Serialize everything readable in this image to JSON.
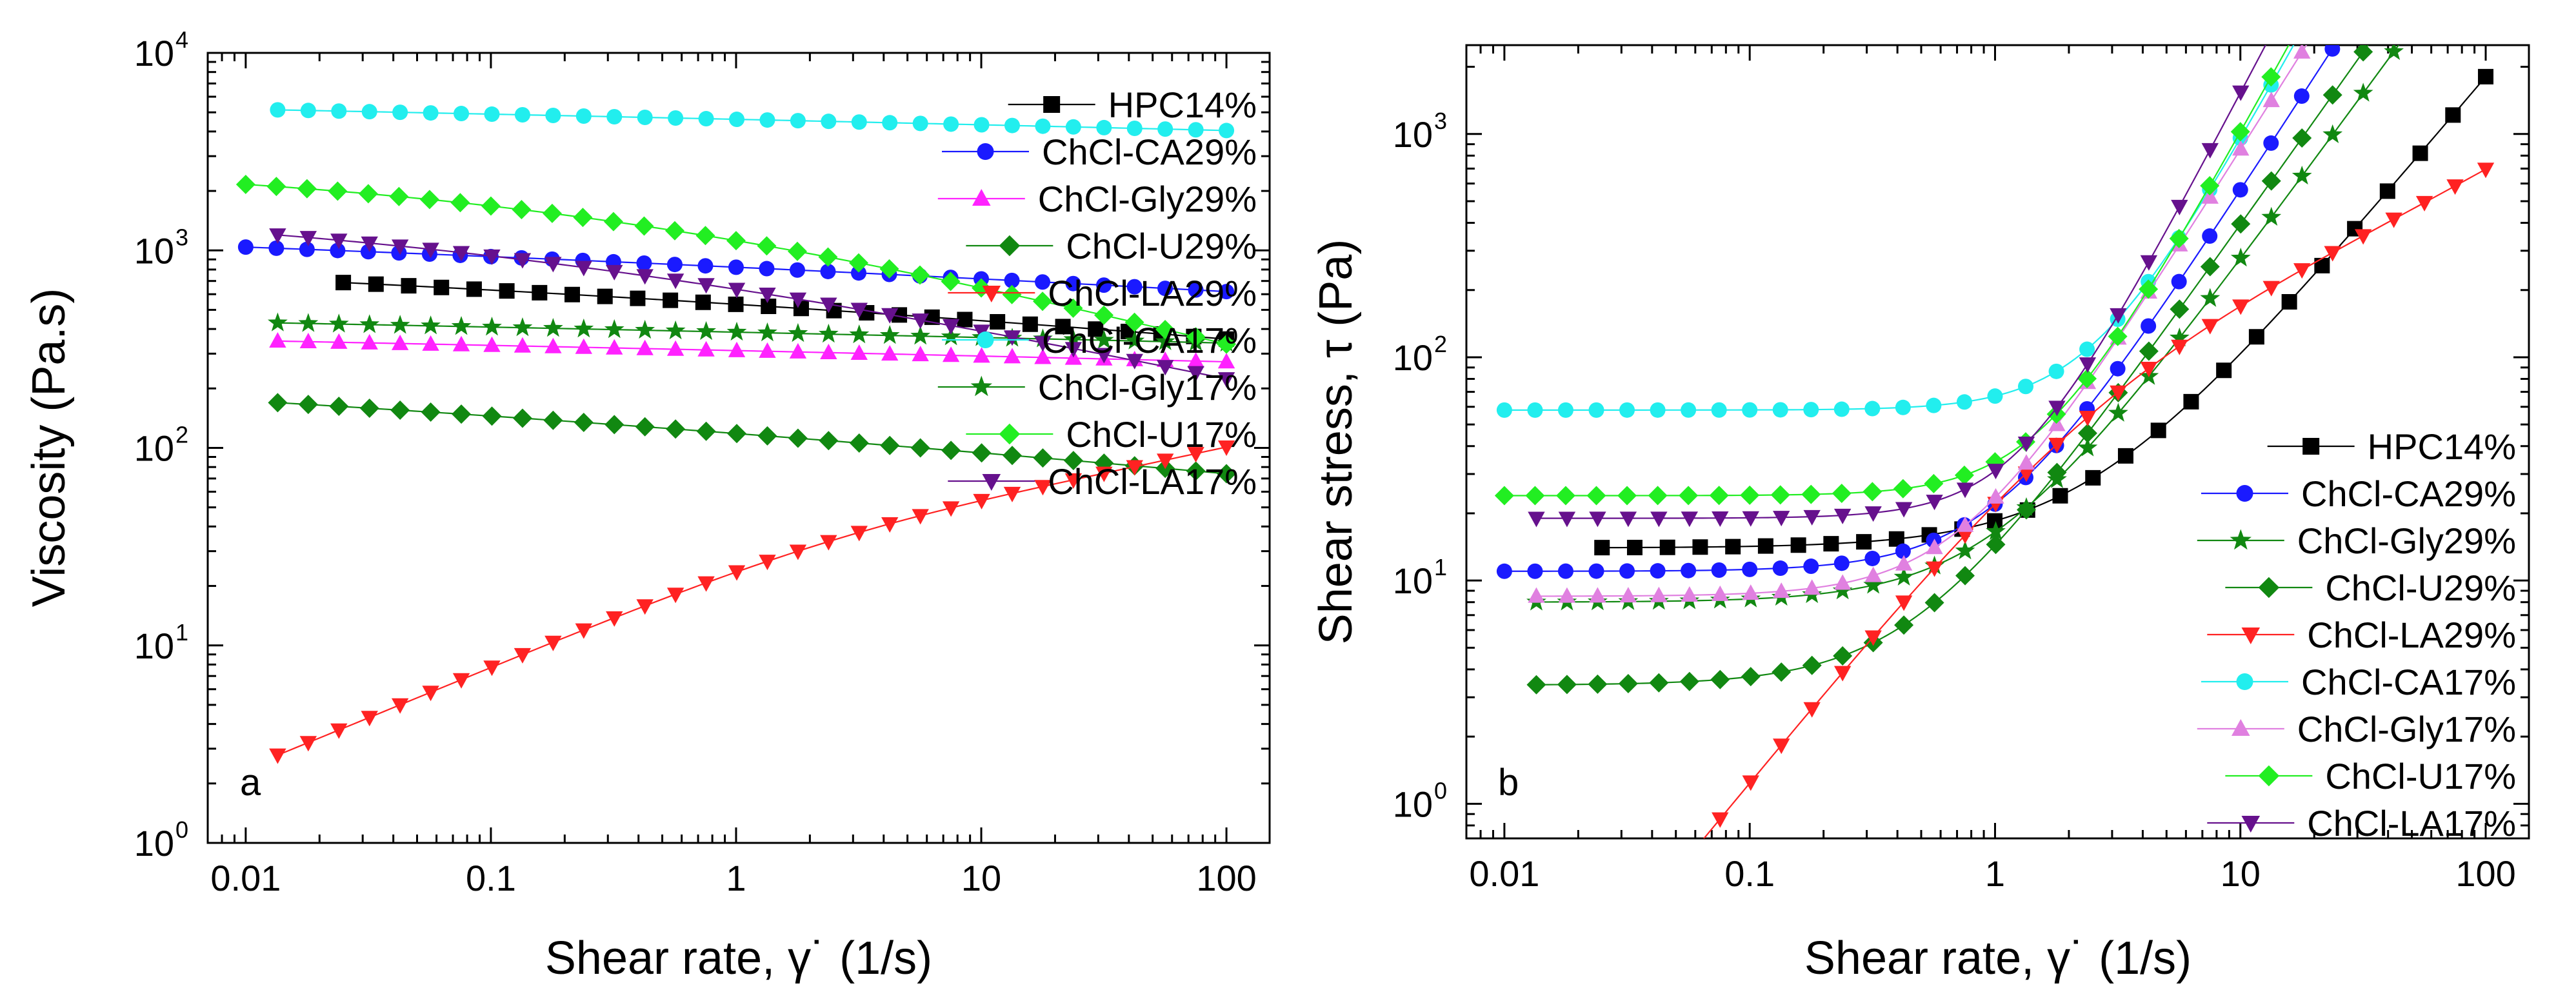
{
  "chart_data": [
    {
      "type": "scatter",
      "panel_label": "a",
      "xlabel": "Shear rate, γ˙ (1/s)",
      "ylabel": "Viscosity (Pa.s)",
      "xscale": "log",
      "yscale": "log",
      "xlim": [
        0.007,
        150
      ],
      "ylim": [
        1,
        10000
      ],
      "x_ticks": [
        "0.01",
        "0.1",
        "1",
        "10",
        "100"
      ],
      "y_ticks": [
        [
          "10",
          "0"
        ],
        [
          "10",
          "1"
        ],
        [
          "10",
          "2"
        ],
        [
          "10",
          "3"
        ],
        [
          "10",
          "4"
        ]
      ],
      "legend_position": "top-right",
      "series": [
        {
          "name": "HPC14%",
          "color": "#000000",
          "marker": "square",
          "x_start": 0.025,
          "x_end": 100,
          "points": 28,
          "model": "carreau",
          "params": [
            1200,
            5,
            0.18,
            0.14
          ]
        },
        {
          "name": "ChCl-CA29%",
          "color": "#1a1aff",
          "marker": "circle",
          "x_start": 0.01,
          "x_end": 100,
          "points": 33,
          "model": "carreau",
          "params": [
            1900,
            13,
            0.05,
            0.1
          ]
        },
        {
          "name": "ChCl-Gly29%",
          "color": "#ff22ff",
          "marker": "triangle-up",
          "x_start": 0.0135,
          "x_end": 100,
          "points": 32,
          "model": "carreau",
          "params": [
            680,
            5,
            0.018,
            0.05
          ]
        },
        {
          "name": "ChCl-U29%",
          "color": "#118811",
          "marker": "diamond",
          "x_start": 0.0135,
          "x_end": 100,
          "points": 32,
          "model": "carreau",
          "params": [
            330,
            7,
            0.011,
            0.15
          ]
        },
        {
          "name": "ChCl-LA29%",
          "color": "#ff2222",
          "marker": "triangle-down",
          "x_start": 0.0135,
          "x_end": 100,
          "points": 32,
          "model": "power",
          "params": [
            0,
            23.5,
            0.5,
            0.3
          ]
        },
        {
          "name": "ChCl-CA17%",
          "color": "#22eeee",
          "marker": "circle",
          "x_start": 0.0135,
          "x_end": 100,
          "points": 32,
          "model": "carreau",
          "params": [
            10000,
            10,
            0.04,
            0.05
          ]
        },
        {
          "name": "ChCl-Gly17%",
          "color": "#118811",
          "marker": "star",
          "x_start": 0.0135,
          "x_end": 100,
          "points": 32,
          "model": "carreau",
          "params": [
            820,
            14,
            0.023,
            0.05
          ]
        },
        {
          "name": "ChCl-U17%",
          "color": "#22ee22",
          "marker": "diamond",
          "x_start": 0.01,
          "x_end": 100,
          "points": 33,
          "model": "carreau",
          "params": [
            2800,
            11,
            0.3,
            0.35
          ]
        },
        {
          "name": "ChCl-LA17%",
          "color": "#66118d",
          "marker": "triangle-down",
          "x_start": 0.0135,
          "x_end": 100,
          "points": 32,
          "model": "carreau",
          "params": [
            1800,
            12.5,
            0.12,
            0.3
          ]
        }
      ]
    },
    {
      "type": "scatter",
      "panel_label": "b",
      "xlabel": "Shear rate, γ˙ (1/s)",
      "ylabel": "Shear stress, τ (Pa)",
      "xscale": "log",
      "yscale": "log",
      "xlim": [
        0.007,
        150
      ],
      "ylim": [
        0.7,
        2500
      ],
      "x_ticks": [
        "0.01",
        "0.1",
        "1",
        "10",
        "100"
      ],
      "y_ticks": [
        [
          "10",
          "0"
        ],
        [
          "10",
          "1"
        ],
        [
          "10",
          "2"
        ],
        [
          "10",
          "3"
        ]
      ],
      "legend_position": "bottom-right",
      "series": [
        {
          "name": "HPC14%",
          "color": "#000000",
          "marker": "square",
          "x_start": 0.025,
          "x_end": 100,
          "points": 28,
          "model": "herschel",
          "params": [
            14,
            4.5,
            1.3,
            0
          ]
        },
        {
          "name": "ChCl-CA29%",
          "color": "#1a1aff",
          "marker": "circle",
          "x_start": 0.01,
          "x_end": 100,
          "points": 33,
          "model": "herschel",
          "params": [
            11,
            11,
            1.7,
            0
          ]
        },
        {
          "name": "ChCl-Gly29%",
          "color": "#118811",
          "marker": "star",
          "x_start": 0.0135,
          "x_end": 100,
          "points": 32,
          "model": "herschel",
          "params": [
            8,
            8.5,
            1.5,
            0
          ]
        },
        {
          "name": "ChCl-U29%",
          "color": "#118811",
          "marker": "diamond",
          "x_start": 0.0135,
          "x_end": 100,
          "points": 32,
          "model": "herschel",
          "params": [
            3.4,
            11,
            1.55,
            0
          ]
        },
        {
          "name": "ChCl-LA29%",
          "color": "#ff2222",
          "marker": "triangle-down",
          "x_start": 0.0135,
          "x_end": 100,
          "points": 32,
          "model": "power",
          "params": [
            0,
            22,
            1.3,
            0.7
          ]
        },
        {
          "name": "ChCl-CA17%",
          "color": "#22eeee",
          "marker": "circle",
          "x_start": 0.01,
          "x_end": 100,
          "points": 33,
          "model": "herschel",
          "params": [
            58,
            9,
            2.0,
            0
          ]
        },
        {
          "name": "ChCl-Gly17%",
          "color": "#e080e0",
          "marker": "triangle-up",
          "x_start": 0.0135,
          "x_end": 100,
          "points": 32,
          "model": "herschel",
          "params": [
            8.5,
            15,
            1.75,
            0
          ]
        },
        {
          "name": "ChCl-U17%",
          "color": "#22ee22",
          "marker": "diamond",
          "x_start": 0.01,
          "x_end": 100,
          "points": 33,
          "model": "herschel",
          "params": [
            24,
            10,
            2.0,
            0
          ]
        },
        {
          "name": "ChCl-LA17%",
          "color": "#66118d",
          "marker": "triangle-down",
          "x_start": 0.0135,
          "x_end": 100,
          "points": 32,
          "model": "herschel",
          "params": [
            19,
            12,
            2.1,
            0
          ]
        }
      ]
    }
  ]
}
